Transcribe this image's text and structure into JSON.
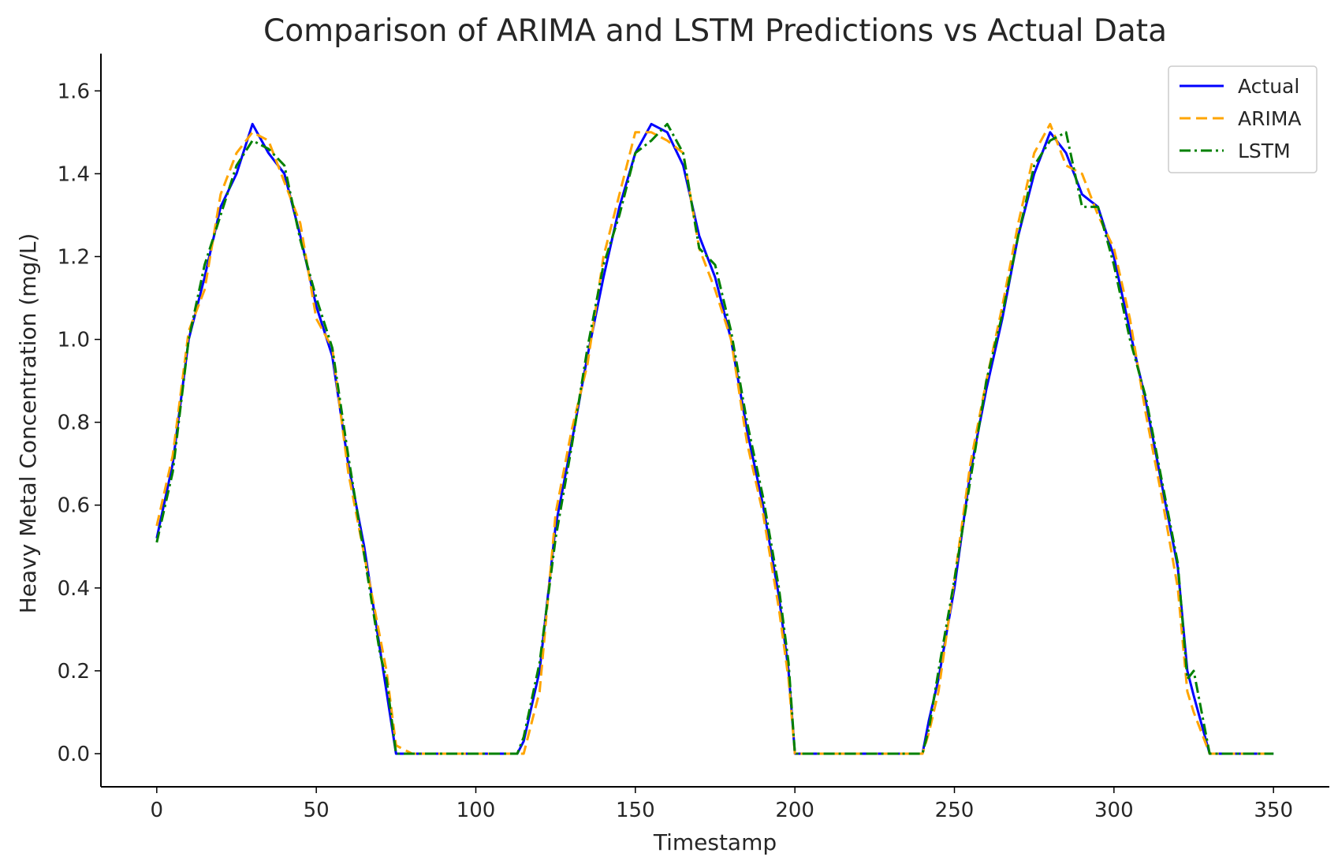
{
  "chart_data": {
    "type": "line",
    "title": "Comparison of ARIMA and LSTM Predictions vs Actual Data",
    "xlabel": "Timestamp",
    "ylabel": "Heavy Metal Concentration (mg/L)",
    "xlim": [
      -17.5,
      367.5
    ],
    "ylim": [
      -0.08,
      1.69
    ],
    "x_ticks": [
      0,
      50,
      100,
      150,
      200,
      250,
      300,
      350
    ],
    "y_ticks": [
      0.0,
      0.2,
      0.4,
      0.6,
      0.8,
      1.0,
      1.2,
      1.4,
      1.6
    ],
    "y_tick_labels": [
      "0.0",
      "0.2",
      "0.4",
      "0.6",
      "0.8",
      "1.0",
      "1.2",
      "1.4",
      "1.6"
    ],
    "grid": false,
    "legend": "top-right",
    "x": [
      0,
      5,
      10,
      15,
      20,
      25,
      30,
      35,
      40,
      45,
      50,
      55,
      60,
      65,
      70,
      72,
      75,
      80,
      90,
      100,
      110,
      113,
      115,
      120,
      125,
      130,
      135,
      140,
      145,
      150,
      155,
      160,
      165,
      170,
      175,
      180,
      185,
      190,
      195,
      198,
      200,
      210,
      220,
      230,
      240,
      242,
      245,
      250,
      255,
      260,
      265,
      270,
      275,
      280,
      285,
      290,
      295,
      300,
      305,
      310,
      315,
      320,
      323,
      325,
      330,
      340,
      350
    ],
    "series": [
      {
        "name": "Actual",
        "color": "#0000ff",
        "dash": "solid",
        "values": [
          0.52,
          0.7,
          1.0,
          1.15,
          1.32,
          1.4,
          1.52,
          1.45,
          1.4,
          1.25,
          1.08,
          0.96,
          0.7,
          0.5,
          0.25,
          0.15,
          0.0,
          0.0,
          0.0,
          0.0,
          0.0,
          0.0,
          0.03,
          0.2,
          0.55,
          0.75,
          0.96,
          1.15,
          1.32,
          1.45,
          1.52,
          1.5,
          1.42,
          1.25,
          1.15,
          1.0,
          0.78,
          0.6,
          0.38,
          0.2,
          0.0,
          0.0,
          0.0,
          0.0,
          0.0,
          0.08,
          0.18,
          0.4,
          0.68,
          0.88,
          1.05,
          1.25,
          1.4,
          1.5,
          1.45,
          1.35,
          1.32,
          1.2,
          1.02,
          0.85,
          0.65,
          0.45,
          0.2,
          0.14,
          0.0,
          0.0,
          0.0
        ]
      },
      {
        "name": "ARIMA",
        "color": "#ffa500",
        "dash": "dashed",
        "values": [
          0.55,
          0.72,
          1.02,
          1.12,
          1.35,
          1.45,
          1.5,
          1.48,
          1.38,
          1.28,
          1.05,
          0.98,
          0.68,
          0.48,
          0.28,
          0.2,
          0.02,
          0.0,
          0.0,
          0.0,
          0.0,
          0.0,
          0.0,
          0.15,
          0.58,
          0.78,
          0.94,
          1.2,
          1.35,
          1.5,
          1.5,
          1.48,
          1.45,
          1.22,
          1.12,
          1.0,
          0.75,
          0.58,
          0.35,
          0.18,
          0.0,
          0.0,
          0.0,
          0.0,
          0.0,
          0.05,
          0.15,
          0.42,
          0.7,
          0.9,
          1.08,
          1.28,
          1.45,
          1.52,
          1.42,
          1.4,
          1.3,
          1.22,
          1.05,
          0.82,
          0.62,
          0.4,
          0.15,
          0.1,
          0.0,
          0.0,
          0.0
        ]
      },
      {
        "name": "LSTM",
        "color": "#008000",
        "dash": "dashdot",
        "values": [
          0.51,
          0.68,
          1.0,
          1.18,
          1.3,
          1.42,
          1.48,
          1.46,
          1.42,
          1.24,
          1.1,
          0.98,
          0.72,
          0.48,
          0.24,
          0.18,
          0.0,
          0.0,
          0.0,
          0.0,
          0.0,
          0.0,
          0.04,
          0.22,
          0.52,
          0.74,
          0.98,
          1.18,
          1.3,
          1.45,
          1.48,
          1.52,
          1.45,
          1.22,
          1.18,
          1.02,
          0.8,
          0.62,
          0.4,
          0.22,
          0.0,
          0.0,
          0.0,
          0.0,
          0.0,
          0.06,
          0.2,
          0.42,
          0.66,
          0.9,
          1.06,
          1.25,
          1.42,
          1.48,
          1.5,
          1.32,
          1.32,
          1.18,
          1.0,
          0.86,
          0.66,
          0.46,
          0.18,
          0.2,
          0.0,
          0.0,
          0.0
        ]
      }
    ]
  }
}
